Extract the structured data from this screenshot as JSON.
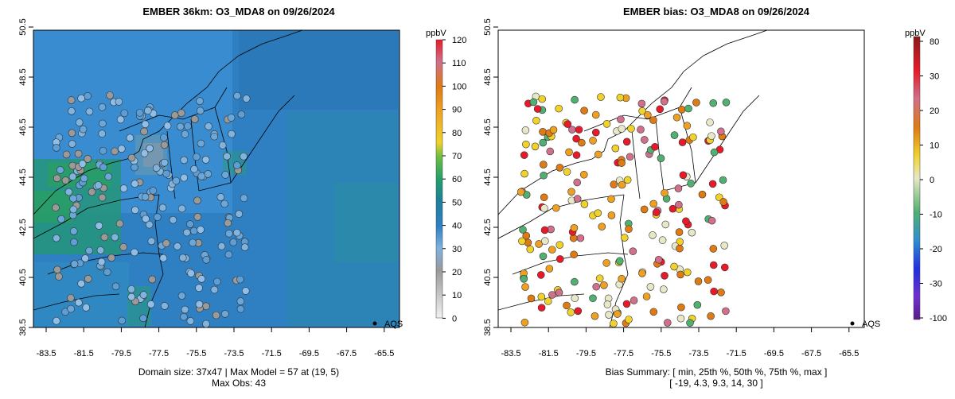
{
  "left_panel": {
    "title": "EMBER 36km: O3_MDA8 on 09/26/2024",
    "caption_line1": "Domain size: 37x47 | Max Model = 57 at (19, 5)",
    "caption_line2": "Max Obs: 43",
    "legend_label": "AQS",
    "colorbar": {
      "unit": "ppbV",
      "ticks": [
        "0",
        "10",
        "20",
        "30",
        "40",
        "50",
        "60",
        "70",
        "80",
        "90",
        "100",
        "110",
        "120"
      ],
      "colors": [
        "#f2f2f2",
        "#c9c9c9",
        "#9a9a9a",
        "#7fb3e0",
        "#2f7fc4",
        "#1d7f9c",
        "#21a06a",
        "#6cbf3f",
        "#f0d22a",
        "#f0a020",
        "#e07a12",
        "#d0708a",
        "#e81a2a"
      ]
    }
  },
  "right_panel": {
    "title": "EMBER bias: O3_MDA8 on 09/26/2024",
    "caption_line1": "Bias Summary: [ min, 25th %, 50th %, 75th %, max ]",
    "caption_line2": "[ -19,  4.3,  9.3,  14,  30 ]",
    "legend_label": "AQS",
    "colorbar": {
      "unit": "ppbV",
      "ticks": [
        "80",
        "30",
        "20",
        "10",
        "0",
        "-10",
        "-20",
        "-30",
        "-100"
      ],
      "colors": [
        "#8a1a1a",
        "#e81a2a",
        "#d0708a",
        "#e07a12",
        "#f0d22a",
        "#e8e8c8",
        "#50b070",
        "#2f8fd0",
        "#2030e0",
        "#7030d0",
        "#5a1a8a"
      ]
    }
  },
  "x_ticks": [
    "-83.5",
    "-81.5",
    "-79.5",
    "-77.5",
    "-75.5",
    "-73.5",
    "-71.5",
    "-69.5",
    "-67.5",
    "-65.5"
  ],
  "y_ticks": [
    "38.5",
    "40.5",
    "42.5",
    "44.5",
    "46.5",
    "48.5",
    "50.5"
  ],
  "colors": {
    "map_water": "#2f7fbf",
    "model_blue": "#3a8fd0",
    "model_green": "#2aa070",
    "outline": "#000000"
  }
}
